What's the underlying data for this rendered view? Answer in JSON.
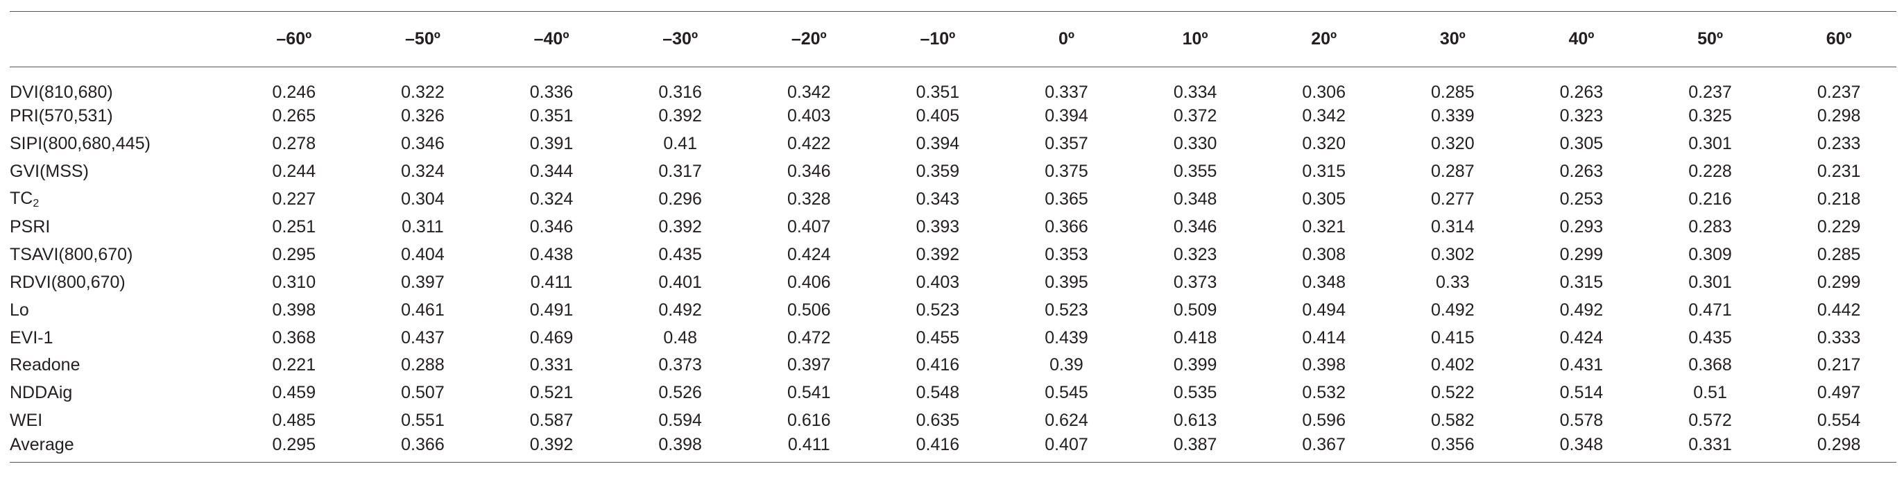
{
  "table": {
    "columns": [
      "",
      "–60º",
      "–50º",
      "–40º",
      "–30º",
      "–20º",
      "–10º",
      "0º",
      "10º",
      "20º",
      "30º",
      "40º",
      "50º",
      "60º"
    ],
    "rows": [
      {
        "label": "DVI(810,680)",
        "values": [
          "0.246",
          "0.322",
          "0.336",
          "0.316",
          "0.342",
          "0.351",
          "0.337",
          "0.334",
          "0.306",
          "0.285",
          "0.263",
          "0.237",
          "0.237"
        ]
      },
      {
        "label": "PRI(570,531)",
        "values": [
          "0.265",
          "0.326",
          "0.351",
          "0.392",
          "0.403",
          "0.405",
          "0.394",
          "0.372",
          "0.342",
          "0.339",
          "0.323",
          "0.325",
          "0.298"
        ]
      },
      {
        "label": "SIPI(800,680,445)",
        "values": [
          "0.278",
          "0.346",
          "0.391",
          "0.41",
          "0.422",
          "0.394",
          "0.357",
          "0.330",
          "0.320",
          "0.320",
          "0.305",
          "0.301",
          "0.233"
        ]
      },
      {
        "label": "GVI(MSS)",
        "values": [
          "0.244",
          "0.324",
          "0.344",
          "0.317",
          "0.346",
          "0.359",
          "0.375",
          "0.355",
          "0.315",
          "0.287",
          "0.263",
          "0.228",
          "0.231"
        ]
      },
      {
        "label": "TC",
        "label_sub": "2",
        "values": [
          "0.227",
          "0.304",
          "0.324",
          "0.296",
          "0.328",
          "0.343",
          "0.365",
          "0.348",
          "0.305",
          "0.277",
          "0.253",
          "0.216",
          "0.218"
        ]
      },
      {
        "label": "PSRI",
        "values": [
          "0.251",
          "0.311",
          "0.346",
          "0.392",
          "0.407",
          "0.393",
          "0.366",
          "0.346",
          "0.321",
          "0.314",
          "0.293",
          "0.283",
          "0.229"
        ]
      },
      {
        "label": "TSAVI(800,670)",
        "values": [
          "0.295",
          "0.404",
          "0.438",
          "0.435",
          "0.424",
          "0.392",
          "0.353",
          "0.323",
          "0.308",
          "0.302",
          "0.299",
          "0.309",
          "0.285"
        ]
      },
      {
        "label": "RDVI(800,670)",
        "values": [
          "0.310",
          "0.397",
          "0.411",
          "0.401",
          "0.406",
          "0.403",
          "0.395",
          "0.373",
          "0.348",
          "0.33",
          "0.315",
          "0.301",
          "0.299"
        ]
      },
      {
        "label": "Lo",
        "values": [
          "0.398",
          "0.461",
          "0.491",
          "0.492",
          "0.506",
          "0.523",
          "0.523",
          "0.509",
          "0.494",
          "0.492",
          "0.492",
          "0.471",
          "0.442"
        ]
      },
      {
        "label": "EVI-1",
        "values": [
          "0.368",
          "0.437",
          "0.469",
          "0.48",
          "0.472",
          "0.455",
          "0.439",
          "0.418",
          "0.414",
          "0.415",
          "0.424",
          "0.435",
          "0.333"
        ]
      },
      {
        "label": "Readone",
        "values": [
          "0.221",
          "0.288",
          "0.331",
          "0.373",
          "0.397",
          "0.416",
          "0.39",
          "0.399",
          "0.398",
          "0.402",
          "0.431",
          "0.368",
          "0.217"
        ]
      },
      {
        "label": "NDDAig",
        "values": [
          "0.459",
          "0.507",
          "0.521",
          "0.526",
          "0.541",
          "0.548",
          "0.545",
          "0.535",
          "0.532",
          "0.522",
          "0.514",
          "0.51",
          "0.497"
        ]
      },
      {
        "label": "WEI",
        "values": [
          "0.485",
          "0.551",
          "0.587",
          "0.594",
          "0.616",
          "0.635",
          "0.624",
          "0.613",
          "0.596",
          "0.582",
          "0.578",
          "0.572",
          "0.554"
        ]
      },
      {
        "label": "Average",
        "values": [
          "0.295",
          "0.366",
          "0.392",
          "0.398",
          "0.411",
          "0.416",
          "0.407",
          "0.387",
          "0.367",
          "0.356",
          "0.348",
          "0.331",
          "0.298"
        ]
      }
    ]
  }
}
